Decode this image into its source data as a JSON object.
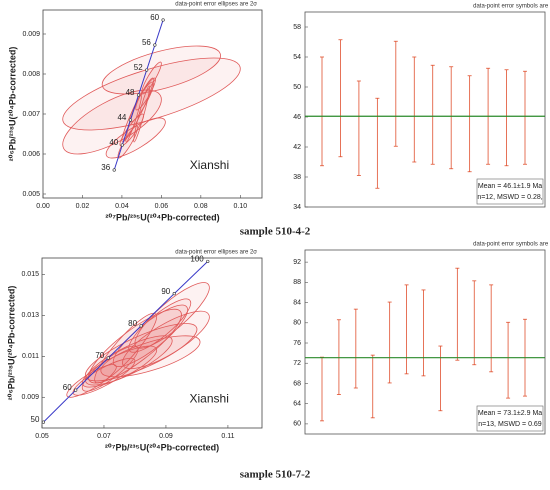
{
  "chart_data": [
    {
      "type": "concordia",
      "note": "data-point error ellipses are 2σ",
      "label": "Xianshi",
      "xlabel": "²⁰⁷Pb/²³⁵U(²⁰⁴Pb-corrected)",
      "ylabel": "²⁰⁶Pb/²³⁸U(²⁰⁴Pb-corrected)",
      "xlim": [
        0,
        0.111
      ],
      "ylim": [
        0.0049,
        0.0096
      ],
      "xticks": [
        {
          "value": 0,
          "label": "0.00"
        },
        0.02,
        0.04,
        0.06,
        0.08,
        {
          "value": 0.1,
          "label": "0.10"
        }
      ],
      "yticks": [
        0.005,
        0.006,
        0.007,
        0.008,
        0.009
      ],
      "concordia": {
        "ages": [
          36,
          40,
          44,
          48,
          52,
          56,
          60
        ],
        "x": [
          0.03609,
          0.04018,
          0.04429,
          0.04841,
          0.05255,
          0.0567,
          0.06087
        ],
        "y": [
          0.0056,
          0.006224,
          0.006849,
          0.007474,
          0.008099,
          0.008725,
          0.009351
        ]
      },
      "ellipses": {
        "x": [
          0.048,
          0.05,
          0.045,
          0.052,
          0.043,
          0.055,
          0.055,
          0.035,
          0.06,
          0.047,
          0.05,
          0.046
        ],
        "y": [
          0.0071,
          0.0073,
          0.0066,
          0.0075,
          0.0063,
          0.0079,
          0.0075,
          0.0068,
          0.0081,
          0.0064,
          0.007,
          0.0069
        ],
        "x_err": [
          0.008,
          0.006,
          0.006,
          0.005,
          0.005,
          0.005,
          0.045,
          0.025,
          0.03,
          0.015,
          0.004,
          0.004
        ],
        "y_err": [
          0.0008,
          0.0005,
          0.0004,
          0.0004,
          0.0004,
          0.0004,
          0.0009,
          0.0008,
          0.0006,
          0.0005,
          0.0007,
          0.0006
        ],
        "rho": [
          0.95,
          0.9,
          0.9,
          0.9,
          0.9,
          0.9,
          0.7,
          0.7,
          0.6,
          0.8,
          0.95,
          0.95
        ]
      },
      "color": "#e05a5a",
      "line_color": "#3a3ac8",
      "caption": "sample 510-4-2"
    },
    {
      "type": "weighted",
      "note": "data-point error symbols are 2σ",
      "ylim": [
        34,
        60
      ],
      "yticks": [
        34,
        38,
        42,
        46,
        50,
        54,
        58
      ],
      "values": [
        46.75,
        48.5,
        44.5,
        42.5,
        49.1,
        47.0,
        46.3,
        45.9,
        45.1,
        46.1,
        45.9,
        45.9
      ],
      "errors": [
        7.25,
        7.8,
        6.3,
        6.0,
        7.0,
        7.0,
        6.6,
        6.8,
        6.4,
        6.4,
        6.4,
        6.2
      ],
      "mean": 46.1,
      "mean_text": "Mean = 46.1±1.9 Ma",
      "stats_text": "n=12,  MSWD = 0.28,",
      "color": "#e0502e",
      "line_color": "#2a8a2a"
    },
    {
      "type": "concordia",
      "note": "data-point error ellipses are 2σ",
      "label": "Xianshi",
      "xlabel": "²⁰⁷Pb/²³⁵U(²⁰⁴Pb-corrected)",
      "ylabel": "²⁰⁶Pb/²³⁸U(²⁰⁴Pb-corrected)",
      "xlim": [
        0.05,
        0.121
      ],
      "ylim": [
        0.0075,
        0.0158
      ],
      "xticks": [
        0.05,
        0.07,
        0.09,
        0.11
      ],
      "yticks": [
        0.009,
        0.011,
        0.013,
        0.015
      ],
      "concordia": {
        "ages": [
          50,
          60,
          70,
          80,
          90,
          100
        ],
        "x": [
          0.05047,
          0.06087,
          0.07138,
          0.08198,
          0.09268,
          0.1035
        ],
        "y": [
          0.007787,
          0.009351,
          0.010918,
          0.012487,
          0.014059,
          0.015633
        ]
      },
      "ellipses": {
        "x": [
          0.08,
          0.085,
          0.078,
          0.088,
          0.075,
          0.09,
          0.07,
          0.082,
          0.066,
          0.092,
          0.077,
          0.085,
          0.072
        ],
        "y": [
          0.0115,
          0.012,
          0.0108,
          0.0125,
          0.0105,
          0.0118,
          0.01,
          0.0112,
          0.0098,
          0.013,
          0.0114,
          0.011,
          0.0104
        ],
        "x_err": [
          0.015,
          0.012,
          0.014,
          0.01,
          0.012,
          0.014,
          0.01,
          0.018,
          0.008,
          0.012,
          0.01,
          0.016,
          0.009
        ],
        "y_err": [
          0.0018,
          0.0015,
          0.0012,
          0.0013,
          0.001,
          0.0014,
          0.0009,
          0.0014,
          0.0008,
          0.0016,
          0.0017,
          0.001,
          0.0011
        ],
        "rho": [
          0.85,
          0.85,
          0.8,
          0.85,
          0.8,
          0.8,
          0.85,
          0.8,
          0.85,
          0.85,
          0.9,
          0.7,
          0.85
        ]
      },
      "color": "#e05a5a",
      "line_color": "#3a3ac8",
      "caption": "sample 510-7-2"
    },
    {
      "type": "weighted",
      "note": "data-point error symbols are 2σ",
      "ylim": [
        58,
        94.4
      ],
      "yticks": [
        60,
        64,
        68,
        72,
        76,
        80,
        84,
        88,
        92
      ],
      "values": [
        66.9,
        73.2,
        74.9,
        67.4,
        76.1,
        78.7,
        78.0,
        69.0,
        81.7,
        80.0,
        78.9,
        72.6,
        73.1
      ],
      "errors": [
        6.3,
        7.4,
        7.8,
        6.2,
        8.0,
        8.8,
        8.5,
        6.4,
        9.1,
        8.3,
        8.6,
        7.5,
        7.6
      ],
      "mean": 73.1,
      "mean_text": "Mean = 73.1±2.9 Ma",
      "stats_text": "n=13,  MSWD = 0.69",
      "color": "#e0502e",
      "line_color": "#2a8a2a"
    }
  ]
}
